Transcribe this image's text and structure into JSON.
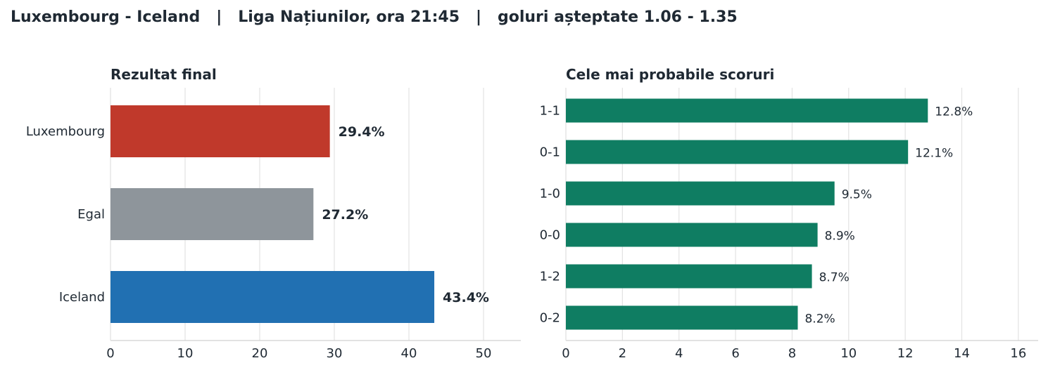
{
  "header": {
    "title": "Luxembourg - Iceland   |   Liga Națiunilor, ora 21:45   |   goluri așteptate 1.06 - 1.35"
  },
  "chart_data": [
    {
      "type": "bar",
      "orientation": "horizontal",
      "title": "Rezultat final",
      "categories": [
        "Luxembourg",
        "Egal",
        "Iceland"
      ],
      "values": [
        29.4,
        27.2,
        43.4
      ],
      "value_labels": [
        "29.4%",
        "27.2%",
        "43.4%"
      ],
      "colors": [
        "#c0392b",
        "#8e959b",
        "#2170b2"
      ],
      "xlim": [
        0,
        55
      ],
      "xticks": [
        0,
        10,
        20,
        30,
        40,
        50
      ],
      "grid": true
    },
    {
      "type": "bar",
      "orientation": "horizontal",
      "title": "Cele mai probabile scoruri",
      "categories": [
        "1-1",
        "0-1",
        "1-0",
        "0-0",
        "1-2",
        "0-2"
      ],
      "values": [
        12.8,
        12.1,
        9.5,
        8.9,
        8.7,
        8.2
      ],
      "value_labels": [
        "12.8%",
        "12.1%",
        "9.5%",
        "8.9%",
        "8.7%",
        "8.2%"
      ],
      "color": "#0f7d62",
      "xlim": [
        0,
        16.7
      ],
      "xticks": [
        0,
        2,
        4,
        6,
        8,
        10,
        12,
        14,
        16
      ],
      "grid": true
    }
  ]
}
